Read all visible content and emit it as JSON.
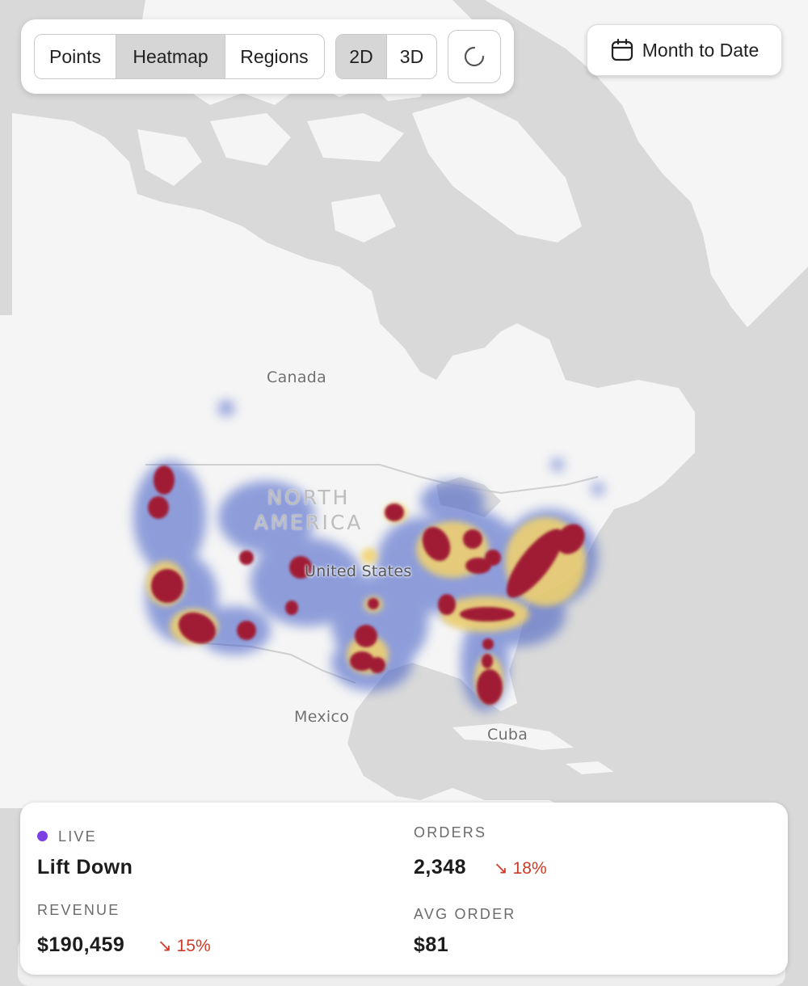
{
  "toolbar": {
    "view_modes": [
      "Points",
      "Heatmap",
      "Regions"
    ],
    "active_view_mode": "Heatmap",
    "dimensions": [
      "2D",
      "3D"
    ],
    "active_dimension": "2D",
    "reset_icon": "loading-spinner-icon"
  },
  "date_range": {
    "label": "Month to Date",
    "icon": "calendar-icon"
  },
  "map": {
    "labels": {
      "canada": "Canada",
      "north": "NORTH",
      "america": "AMERICA",
      "united_states": "United States",
      "mexico": "Mexico",
      "cuba": "Cuba"
    },
    "colors": {
      "land": "#f5f5f5",
      "water": "#d9d9d9",
      "heat_low": "#3a57c4",
      "heat_mid": "#f3d36b",
      "heat_high": "#a01e35"
    }
  },
  "stats": {
    "status_label": "LIVE",
    "status_color": "#7b3fe4",
    "title": "Lift Down",
    "revenue": {
      "label": "REVENUE",
      "value": "$190,459",
      "change": "15%",
      "direction": "down"
    },
    "orders": {
      "label": "ORDERS",
      "value": "2,348",
      "change": "18%",
      "direction": "down"
    },
    "avg_order": {
      "label": "AVG ORDER",
      "value": "$81"
    }
  }
}
